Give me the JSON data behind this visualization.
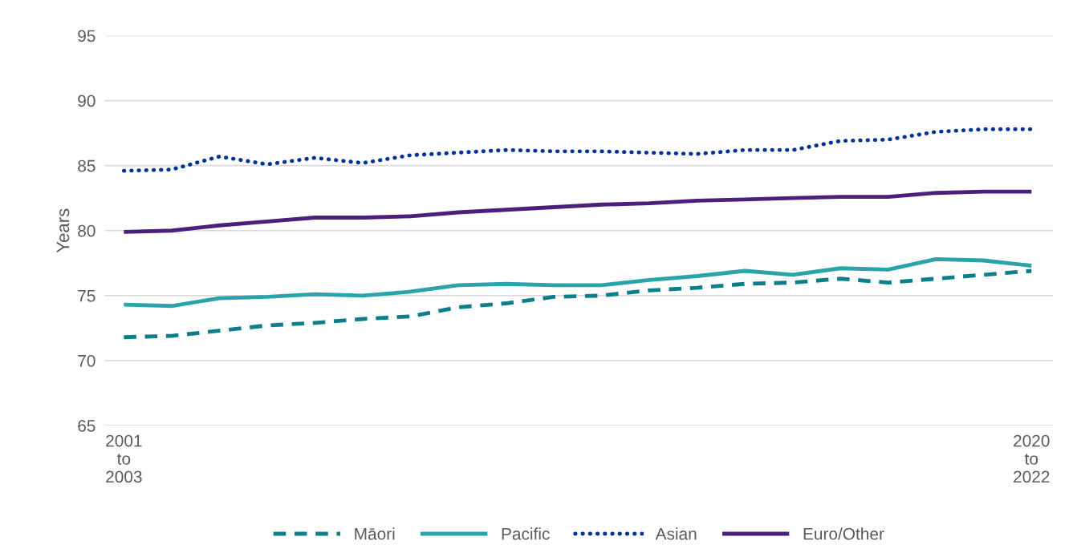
{
  "chart_data": {
    "type": "line",
    "ylabel": "Years",
    "categories": [
      "2001\nto\n2003",
      null,
      null,
      null,
      null,
      null,
      null,
      null,
      null,
      null,
      null,
      null,
      null,
      null,
      null,
      null,
      null,
      null,
      null,
      "2020\nto\n2022"
    ],
    "series": [
      {
        "name": "Māori",
        "color": "#0e7f8a",
        "line_style": "dashed",
        "values": [
          71.8,
          71.9,
          72.3,
          72.7,
          72.9,
          73.2,
          73.4,
          74.1,
          74.4,
          74.9,
          75.0,
          75.4,
          75.6,
          75.9,
          76.0,
          76.3,
          76.0,
          76.3,
          76.6,
          76.9
        ]
      },
      {
        "name": "Pacific",
        "color": "#2aa3ab",
        "line_style": "solid",
        "values": [
          74.3,
          74.2,
          74.8,
          74.9,
          75.1,
          75.0,
          75.3,
          75.8,
          75.9,
          75.8,
          75.8,
          76.2,
          76.5,
          76.9,
          76.6,
          77.1,
          77.0,
          77.8,
          77.7,
          77.3
        ]
      },
      {
        "name": "Asian",
        "color": "#003399",
        "line_style": "dotted",
        "values": [
          84.6,
          84.7,
          85.7,
          85.1,
          85.6,
          85.2,
          85.8,
          86.0,
          86.2,
          86.1,
          86.1,
          86.0,
          85.9,
          86.2,
          86.2,
          86.9,
          87.0,
          87.6,
          87.8,
          87.8
        ]
      },
      {
        "name": "Euro/Other",
        "color": "#4b1f7a",
        "line_style": "solid",
        "values": [
          79.9,
          80.0,
          80.4,
          80.7,
          81.0,
          81.0,
          81.1,
          81.4,
          81.6,
          81.8,
          82.0,
          82.1,
          82.3,
          82.4,
          82.5,
          82.6,
          82.6,
          82.9,
          83.0,
          83.0
        ]
      }
    ],
    "ylim": [
      65,
      95
    ],
    "yticks": [
      65,
      70,
      75,
      80,
      85,
      90,
      95
    ],
    "grid": "y",
    "legend": "bottom",
    "marker": "none"
  }
}
